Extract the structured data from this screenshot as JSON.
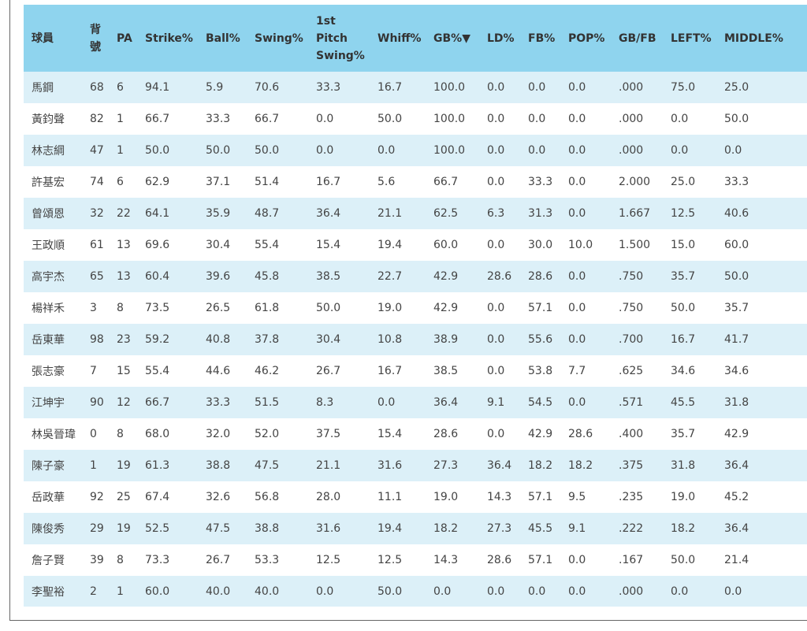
{
  "table": {
    "columns": [
      "球員",
      "背號",
      "PA",
      "Strike%",
      "Ball%",
      "Swing%",
      "1st Pitch Swing%",
      "Whiff%",
      "GB%▼",
      "LD%",
      "FB%",
      "POP%",
      "GB/FB",
      "LEFT%",
      "MIDDLE%"
    ],
    "rows": [
      [
        "馬鋼",
        "68",
        "6",
        "94.1",
        "5.9",
        "70.6",
        "33.3",
        "16.7",
        "100.0",
        "0.0",
        "0.0",
        "0.0",
        ".000",
        "75.0",
        "25.0"
      ],
      [
        "黃鈞聲",
        "82",
        "1",
        "66.7",
        "33.3",
        "66.7",
        "0.0",
        "50.0",
        "100.0",
        "0.0",
        "0.0",
        "0.0",
        ".000",
        "0.0",
        "50.0"
      ],
      [
        "林志綱",
        "47",
        "1",
        "50.0",
        "50.0",
        "50.0",
        "0.0",
        "0.0",
        "100.0",
        "0.0",
        "0.0",
        "0.0",
        ".000",
        "0.0",
        "0.0"
      ],
      [
        "許基宏",
        "74",
        "6",
        "62.9",
        "37.1",
        "51.4",
        "16.7",
        "5.6",
        "66.7",
        "0.0",
        "33.3",
        "0.0",
        "2.000",
        "25.0",
        "33.3"
      ],
      [
        "曾頌恩",
        "32",
        "22",
        "64.1",
        "35.9",
        "48.7",
        "36.4",
        "21.1",
        "62.5",
        "6.3",
        "31.3",
        "0.0",
        "1.667",
        "12.5",
        "40.6"
      ],
      [
        "王政順",
        "61",
        "13",
        "69.6",
        "30.4",
        "55.4",
        "15.4",
        "19.4",
        "60.0",
        "0.0",
        "30.0",
        "10.0",
        "1.500",
        "15.0",
        "60.0"
      ],
      [
        "高宇杰",
        "65",
        "13",
        "60.4",
        "39.6",
        "45.8",
        "38.5",
        "22.7",
        "42.9",
        "28.6",
        "28.6",
        "0.0",
        ".750",
        "35.7",
        "50.0"
      ],
      [
        "楊祥禾",
        "3",
        "8",
        "73.5",
        "26.5",
        "61.8",
        "50.0",
        "19.0",
        "42.9",
        "0.0",
        "57.1",
        "0.0",
        ".750",
        "50.0",
        "35.7"
      ],
      [
        "岳東華",
        "98",
        "23",
        "59.2",
        "40.8",
        "37.8",
        "30.4",
        "10.8",
        "38.9",
        "0.0",
        "55.6",
        "0.0",
        ".700",
        "16.7",
        "41.7"
      ],
      [
        "張志豪",
        "7",
        "15",
        "55.4",
        "44.6",
        "46.2",
        "26.7",
        "16.7",
        "38.5",
        "0.0",
        "53.8",
        "7.7",
        ".625",
        "34.6",
        "34.6"
      ],
      [
        "江坤宇",
        "90",
        "12",
        "66.7",
        "33.3",
        "51.5",
        "8.3",
        "0.0",
        "36.4",
        "9.1",
        "54.5",
        "0.0",
        ".571",
        "45.5",
        "31.8"
      ],
      [
        "林吳晉瑋",
        "0",
        "8",
        "68.0",
        "32.0",
        "52.0",
        "37.5",
        "15.4",
        "28.6",
        "0.0",
        "42.9",
        "28.6",
        ".400",
        "35.7",
        "42.9"
      ],
      [
        "陳子豪",
        "1",
        "19",
        "61.3",
        "38.8",
        "47.5",
        "21.1",
        "31.6",
        "27.3",
        "36.4",
        "18.2",
        "18.2",
        ".375",
        "31.8",
        "36.4"
      ],
      [
        "岳政華",
        "92",
        "25",
        "67.4",
        "32.6",
        "56.8",
        "28.0",
        "11.1",
        "19.0",
        "14.3",
        "57.1",
        "9.5",
        ".235",
        "19.0",
        "45.2"
      ],
      [
        "陳俊秀",
        "29",
        "19",
        "52.5",
        "47.5",
        "38.8",
        "31.6",
        "19.4",
        "18.2",
        "27.3",
        "45.5",
        "9.1",
        ".222",
        "18.2",
        "36.4"
      ],
      [
        "詹子賢",
        "39",
        "8",
        "73.3",
        "26.7",
        "53.3",
        "12.5",
        "12.5",
        "14.3",
        "28.6",
        "57.1",
        "0.0",
        ".167",
        "50.0",
        "21.4"
      ],
      [
        "李聖裕",
        "2",
        "1",
        "60.0",
        "40.0",
        "40.0",
        "0.0",
        "50.0",
        "0.0",
        "0.0",
        "0.0",
        "0.0",
        ".000",
        "0.0",
        "0.0"
      ]
    ]
  }
}
